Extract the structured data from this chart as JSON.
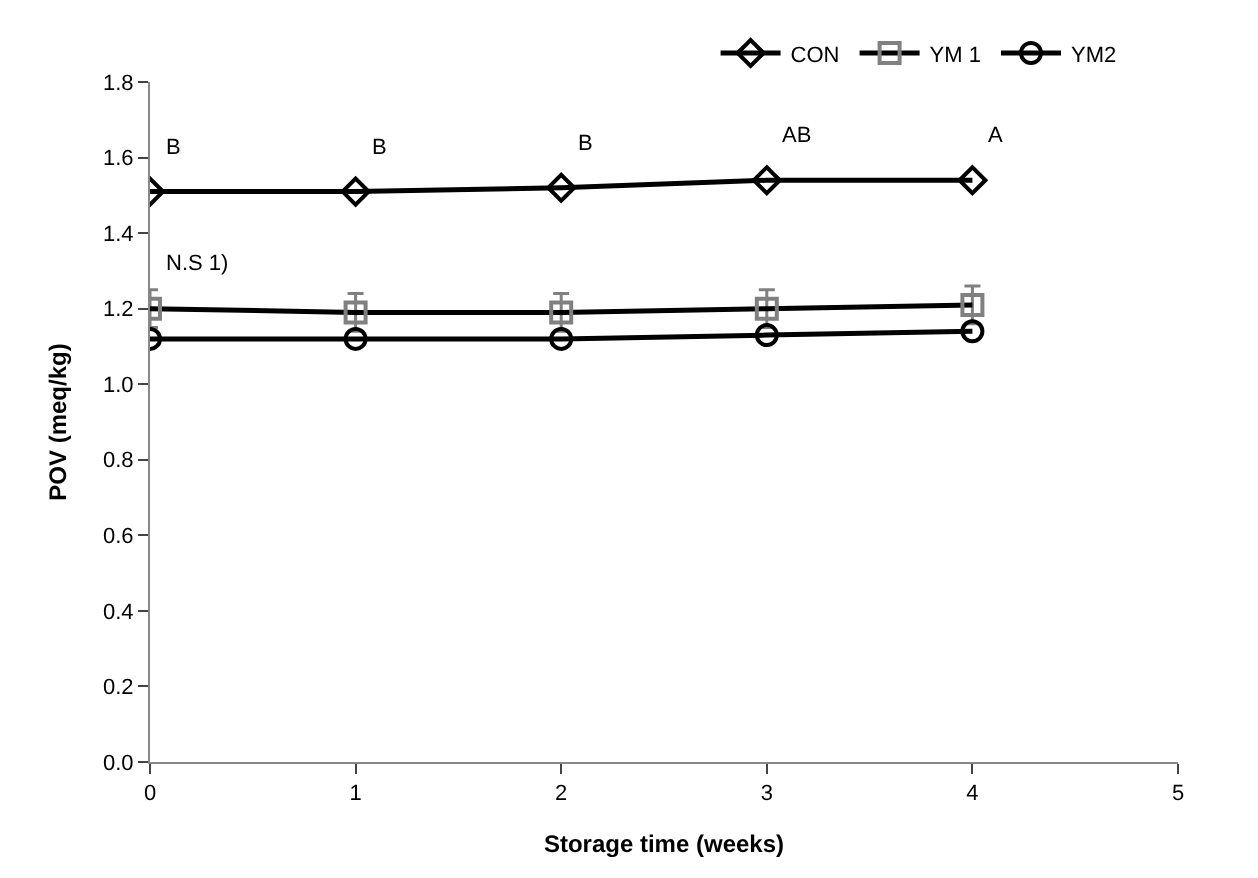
{
  "chart_data": {
    "type": "line",
    "xlabel": "Storage time (weeks)",
    "ylabel": "POV (meq/kg)",
    "x": [
      0,
      1,
      2,
      3,
      4
    ],
    "series": [
      {
        "name": "CON",
        "color": "#000000",
        "marker": "diamond",
        "values": [
          1.51,
          1.51,
          1.52,
          1.54,
          1.54
        ]
      },
      {
        "name": "YM 1",
        "color": "#808080",
        "marker": "square",
        "values": [
          1.2,
          1.19,
          1.19,
          1.2,
          1.21
        ],
        "errors": [
          0.05,
          0.05,
          0.05,
          0.05,
          0.05
        ]
      },
      {
        "name": "YM2",
        "color": "#000000",
        "marker": "circle",
        "values": [
          1.12,
          1.12,
          1.12,
          1.13,
          1.14
        ]
      }
    ],
    "annotations": [
      {
        "text": "B",
        "x": 0,
        "y": 1.51
      },
      {
        "text": "B",
        "x": 1,
        "y": 1.51
      },
      {
        "text": "B",
        "x": 2,
        "y": 1.52
      },
      {
        "text": "AB",
        "x": 3,
        "y": 1.54
      },
      {
        "text": "A",
        "x": 4,
        "y": 1.54
      },
      {
        "text": "N.S 1)",
        "x": 0,
        "y": 1.2
      }
    ],
    "xlim": [
      0,
      5
    ],
    "xticks": [
      0,
      1,
      2,
      3,
      4,
      5
    ],
    "ylim": [
      0,
      1.8
    ],
    "yticks": [
      {
        "value": 0,
        "label": "0.0"
      },
      {
        "value": 0.2,
        "label": "0.2"
      },
      {
        "value": 0.4,
        "label": "0.4"
      },
      {
        "value": 0.6,
        "label": "0.6"
      },
      {
        "value": 0.8,
        "label": "0.8"
      },
      {
        "value": 1.0,
        "label": "1.0"
      },
      {
        "value": 1.2,
        "label": "1.2"
      },
      {
        "value": 1.4,
        "label": "1.4"
      },
      {
        "value": 1.6,
        "label": "1.6"
      },
      {
        "value": 1.8,
        "label": "1.8"
      }
    ],
    "legend": "top right",
    "line_style": "solid"
  }
}
